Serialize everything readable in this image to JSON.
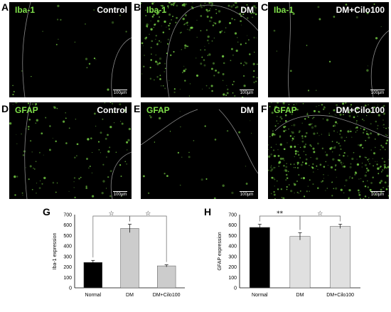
{
  "panels": [
    {
      "letter": "A",
      "marker": "Iba-1",
      "group": "Control",
      "scale": "100µm"
    },
    {
      "letter": "B",
      "marker": "Iba-1",
      "group": "DM",
      "scale": "100µm"
    },
    {
      "letter": "C",
      "marker": "Iba-1",
      "group": "DM+Cilo100",
      "scale": "100µm"
    },
    {
      "letter": "D",
      "marker": "GFAP",
      "group": "Control",
      "scale": "100µm"
    },
    {
      "letter": "E",
      "marker": "GFAP",
      "group": "DM",
      "scale": "100µm"
    },
    {
      "letter": "F",
      "marker": "GFAP",
      "group": "DM+Cilo100",
      "scale": "100µm"
    }
  ],
  "colors": {
    "fluorescence": "#7fe04a",
    "background": "#000000"
  },
  "chart_data": [
    {
      "letter": "G",
      "type": "bar",
      "categories": [
        "Normal",
        "DM",
        "DM+Cilo100"
      ],
      "values": [
        243,
        568,
        210
      ],
      "errors": [
        20,
        40,
        10
      ],
      "bar_colors": [
        "#000000",
        "#cccccc",
        "#cccccc"
      ],
      "title": "",
      "xlabel": "",
      "ylabel": "Iba-1 expression",
      "ylim": [
        0,
        700
      ],
      "yticks": [
        "0",
        "100",
        "200",
        "300",
        "400",
        "500",
        "600",
        "700"
      ],
      "grid": false,
      "significance": [
        {
          "from": 0,
          "to": 1,
          "mark": "☆"
        },
        {
          "from": 1,
          "to": 2,
          "mark": "☆"
        }
      ]
    },
    {
      "letter": "H",
      "type": "bar",
      "categories": [
        "Normal",
        "DM",
        "DM+Cilo100"
      ],
      "values": [
        578,
        492,
        588
      ],
      "errors": [
        30,
        35,
        20
      ],
      "bar_colors": [
        "#000000",
        "#e0e0e0",
        "#e0e0e0"
      ],
      "title": "",
      "xlabel": "",
      "ylabel": "GFAP expression",
      "ylim": [
        0,
        700
      ],
      "yticks": [
        "0",
        "100",
        "200",
        "300",
        "400",
        "500",
        "600",
        "700"
      ],
      "grid": false,
      "significance": [
        {
          "from": 0,
          "to": 1,
          "mark": "**"
        },
        {
          "from": 1,
          "to": 2,
          "mark": "☆"
        }
      ]
    }
  ]
}
